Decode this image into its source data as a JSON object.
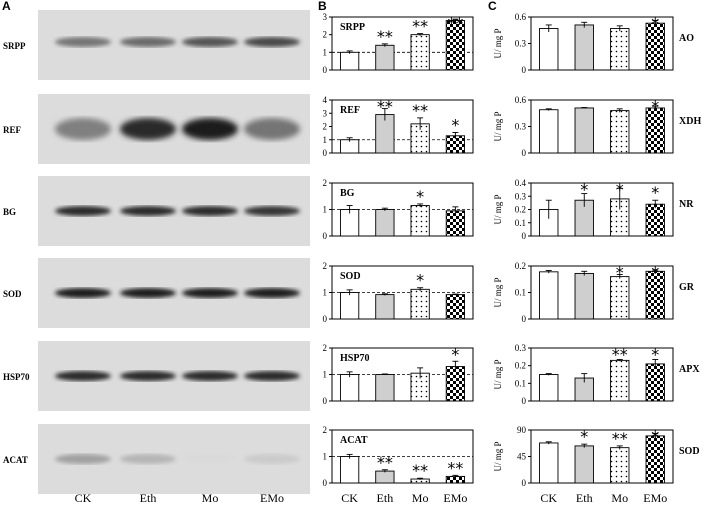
{
  "panel_letters": {
    "a": "A",
    "b": "B",
    "c": "C"
  },
  "lanes": [
    "CK",
    "Eth",
    "Mo",
    "EMo"
  ],
  "blots": [
    {
      "protein": "SRPP",
      "band_intensity": [
        0.55,
        0.6,
        0.7,
        0.75
      ]
    },
    {
      "protein": "REF",
      "band_intensity": [
        0.5,
        0.9,
        0.95,
        0.55
      ]
    },
    {
      "protein": "BG",
      "band_intensity": [
        0.9,
        0.9,
        0.9,
        0.85
      ]
    },
    {
      "protein": "SOD",
      "band_intensity": [
        0.95,
        0.95,
        0.95,
        0.95
      ]
    },
    {
      "protein": "HSP70",
      "band_intensity": [
        0.9,
        0.9,
        0.9,
        0.9
      ]
    },
    {
      "protein": "ACAT",
      "band_intensity": [
        0.35,
        0.25,
        0.08,
        0.15
      ]
    }
  ],
  "pattern_legend": {
    "CK": "white",
    "Eth": "grey",
    "Mo": "dotted",
    "EMo": "checkered"
  },
  "chart_data": [
    {
      "panel": "B",
      "type": "bar",
      "title": "SRPP",
      "categories": [
        "CK",
        "Eth",
        "Mo",
        "EMo"
      ],
      "values": [
        1.0,
        1.4,
        2.0,
        2.8
      ],
      "errors": [
        0.08,
        0.08,
        0.06,
        0.08
      ],
      "sig": [
        "",
        "**",
        "**",
        "**"
      ],
      "ylim": [
        0,
        3
      ],
      "yticks": [
        "0",
        "1",
        "2",
        "3"
      ],
      "reference_line": 1
    },
    {
      "panel": "B",
      "type": "bar",
      "title": "REF",
      "categories": [
        "CK",
        "Eth",
        "Mo",
        "EMo"
      ],
      "values": [
        1.0,
        2.9,
        2.2,
        1.3
      ],
      "errors": [
        0.15,
        0.45,
        0.45,
        0.25
      ],
      "sig": [
        "",
        "**",
        "**",
        "*"
      ],
      "ylim": [
        0,
        4
      ],
      "yticks": [
        "0",
        "1",
        "2",
        "3",
        "4"
      ],
      "reference_line": 1
    },
    {
      "panel": "B",
      "type": "bar",
      "title": "BG",
      "categories": [
        "CK",
        "Eth",
        "Mo",
        "EMo"
      ],
      "values": [
        1.0,
        1.0,
        1.15,
        0.95
      ],
      "errors": [
        0.15,
        0.05,
        0.06,
        0.15
      ],
      "sig": [
        "",
        "",
        "*",
        ""
      ],
      "ylim": [
        0,
        2
      ],
      "yticks": [
        "0",
        "1",
        "2"
      ],
      "reference_line": 1
    },
    {
      "panel": "B",
      "type": "bar",
      "title": "SOD",
      "categories": [
        "CK",
        "Eth",
        "Mo",
        "EMo"
      ],
      "values": [
        1.0,
        0.92,
        1.12,
        0.92
      ],
      "errors": [
        0.1,
        0.03,
        0.06,
        0.02
      ],
      "sig": [
        "",
        "",
        "*",
        ""
      ],
      "ylim": [
        0,
        2
      ],
      "yticks": [
        "0",
        "1",
        "2"
      ],
      "reference_line": 1
    },
    {
      "panel": "B",
      "type": "bar",
      "title": "HSP70",
      "categories": [
        "CK",
        "Eth",
        "Mo",
        "EMo"
      ],
      "values": [
        1.0,
        1.0,
        1.05,
        1.3
      ],
      "errors": [
        0.1,
        0.02,
        0.2,
        0.2
      ],
      "sig": [
        "",
        "",
        "",
        "*"
      ],
      "ylim": [
        0,
        2
      ],
      "yticks": [
        "0",
        "1",
        "2"
      ],
      "reference_line": 1
    },
    {
      "panel": "B",
      "type": "bar",
      "title": "ACAT",
      "categories": [
        "CK",
        "Eth",
        "Mo",
        "EMo"
      ],
      "values": [
        1.0,
        0.45,
        0.15,
        0.25
      ],
      "errors": [
        0.08,
        0.05,
        0.03,
        0.04
      ],
      "sig": [
        "",
        "**",
        "**",
        "**"
      ],
      "ylim": [
        0,
        2
      ],
      "yticks": [
        "0",
        "1",
        "2"
      ],
      "reference_line": 1
    },
    {
      "panel": "C",
      "type": "bar",
      "title": "AO",
      "ylabel": "U/ mg P",
      "categories": [
        "CK",
        "Eth",
        "Mo",
        "EMo"
      ],
      "values": [
        0.47,
        0.51,
        0.47,
        0.53
      ],
      "errors": [
        0.04,
        0.03,
        0.03,
        0.03
      ],
      "sig": [
        "",
        "",
        "",
        "*"
      ],
      "ylim": [
        0,
        0.6
      ],
      "yticks": [
        "0",
        "0.3",
        "0.6"
      ]
    },
    {
      "panel": "C",
      "type": "bar",
      "title": "XDH",
      "ylabel": "U/ mg P",
      "categories": [
        "CK",
        "Eth",
        "Mo",
        "EMo"
      ],
      "values": [
        0.49,
        0.51,
        0.48,
        0.51
      ],
      "errors": [
        0.01,
        0.005,
        0.02,
        0.02
      ],
      "sig": [
        "",
        "",
        "",
        "*"
      ],
      "ylim": [
        0,
        0.6
      ],
      "yticks": [
        "0",
        "0.3",
        "0.6"
      ]
    },
    {
      "panel": "C",
      "type": "bar",
      "title": "NR",
      "ylabel": "U/ mg P",
      "categories": [
        "CK",
        "Eth",
        "Mo",
        "EMo"
      ],
      "values": [
        0.2,
        0.27,
        0.28,
        0.24
      ],
      "errors": [
        0.07,
        0.05,
        0.08,
        0.03
      ],
      "sig": [
        "",
        "*",
        "*",
        "*"
      ],
      "ylim": [
        0,
        0.4
      ],
      "yticks": [
        "0",
        "0.1",
        "0.2",
        "0.3",
        "0.4"
      ]
    },
    {
      "panel": "C",
      "type": "bar",
      "title": "GR",
      "ylabel": "U/ mg P",
      "categories": [
        "CK",
        "Eth",
        "Mo",
        "EMo"
      ],
      "values": [
        0.178,
        0.172,
        0.16,
        0.18
      ],
      "errors": [
        0.005,
        0.008,
        0.008,
        0.005
      ],
      "sig": [
        "",
        "",
        "*",
        "*"
      ],
      "ylim": [
        0,
        0.2
      ],
      "yticks": [
        "0",
        "0.1",
        "0.2"
      ]
    },
    {
      "panel": "C",
      "type": "bar",
      "title": "APX",
      "ylabel": "U/ mg P",
      "categories": [
        "CK",
        "Eth",
        "Mo",
        "EMo"
      ],
      "values": [
        0.15,
        0.13,
        0.23,
        0.21
      ],
      "errors": [
        0.005,
        0.025,
        0.005,
        0.025
      ],
      "sig": [
        "",
        "",
        "**",
        "*"
      ],
      "ylim": [
        0,
        0.3
      ],
      "yticks": [
        "0",
        "0.1",
        "0.2",
        "0.3"
      ]
    },
    {
      "panel": "C",
      "type": "bar",
      "title": "SOD",
      "ylabel": "U/ mg P",
      "categories": [
        "CK",
        "Eth",
        "Mo",
        "EMo"
      ],
      "values": [
        68,
        63,
        60,
        80
      ],
      "errors": [
        2,
        3,
        3,
        4
      ],
      "sig": [
        "",
        "*",
        "**",
        "*"
      ],
      "ylim": [
        0,
        90
      ],
      "yticks": [
        "0",
        "45",
        "90"
      ]
    }
  ]
}
